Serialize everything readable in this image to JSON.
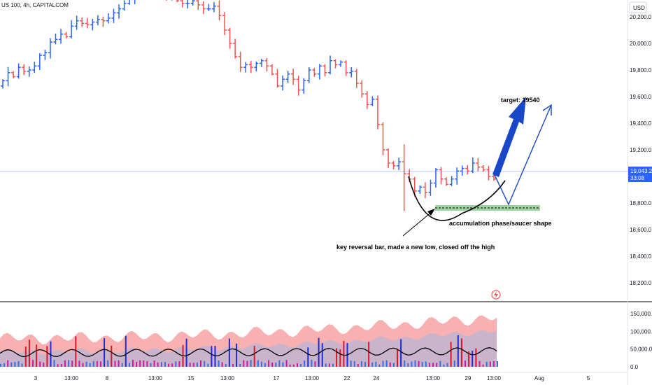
{
  "header": {
    "symbol": "US 100, 4h, CAPITALCOM"
  },
  "currency_button": "USD",
  "current_price": {
    "price": "19,043.2",
    "countdown": "33:08"
  },
  "annotations": {
    "target": "target: 19540",
    "pattern": "accumulation phase/saucer shape",
    "reversal": "key reversal bar, made a new low, closed off the high"
  },
  "colors": {
    "up": "#2962ff",
    "down": "#ef5350",
    "support_zone": "#4caf50",
    "arrow": "#1848c8",
    "annotation": "#000000"
  },
  "chart_data": {
    "type": "ohlc",
    "price_axis": {
      "ticks": [
        18200,
        18400,
        18600,
        18800,
        19000,
        19200,
        19400,
        19600,
        19800,
        20000,
        20200
      ],
      "tick_labels": [
        "18,200.0",
        "18,400.0",
        "18,600.0",
        "18,800.0",
        "",
        "19,200.0",
        "19,400.0",
        "19,600.0",
        "19,800.0",
        "20,000.0",
        "20,200.0"
      ],
      "ylim": [
        18070,
        20280
      ]
    },
    "time_axis": {
      "labels": [
        "3",
        "13:00",
        "8",
        "13:00",
        "15",
        "13:00",
        "17",
        "13:00",
        "22",
        "24",
        "13:00",
        "29",
        "13:00",
        "Aug",
        "5"
      ]
    },
    "closes": [
      19720,
      19780,
      19750,
      19820,
      19790,
      19800,
      19830,
      19910,
      19930,
      20010,
      20030,
      20070,
      20050,
      20130,
      20170,
      20150,
      20140,
      20160,
      20180,
      20170,
      20190,
      20230,
      20260,
      20300,
      20330,
      20390,
      20440,
      20460,
      20460,
      20450,
      20420,
      20360,
      20380,
      20320,
      20300,
      20300,
      20320,
      20290,
      20260,
      20260,
      20280,
      20210,
      20100,
      20000,
      19900,
      19820,
      19840,
      19820,
      19850,
      19870,
      19830,
      19770,
      19680,
      19730,
      19770,
      19730,
      19650,
      19720,
      19800,
      19770,
      19830,
      19780,
      19870,
      19840,
      19860,
      19780,
      19790,
      19700,
      19620,
      19540,
      19580,
      19390,
      19200,
      19100,
      19080,
      19110,
      19020,
      18980,
      18890,
      18920,
      18880,
      18950,
      19050,
      18980,
      18940,
      18980,
      19040,
      19060,
      19040,
      19100,
      19070,
      19050,
      19000,
      18980
    ],
    "volume_axis": {
      "ticks": [
        0,
        50000,
        100000,
        150000
      ],
      "tick_labels": [
        "0.0",
        "50,000.0",
        "100,000.0",
        "150,000.0"
      ]
    },
    "support_zone": [
      18760,
      18800
    ],
    "target_price": 19540
  }
}
